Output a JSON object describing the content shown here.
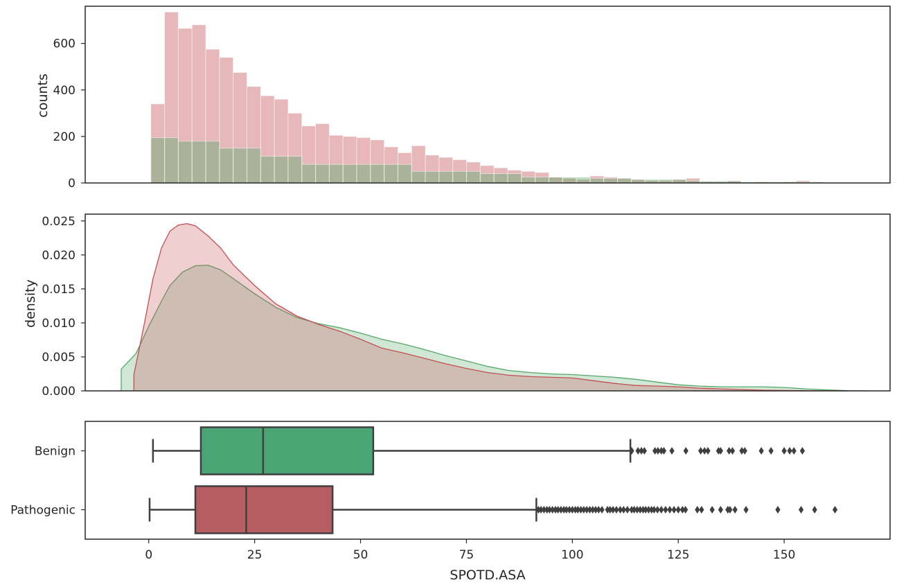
{
  "chart_data": [
    {
      "type": "histogram",
      "ylabel": "counts",
      "xlim": [
        -15,
        175
      ],
      "ylim": [
        0,
        760
      ],
      "yticks": [
        0,
        200,
        400,
        600
      ],
      "bin_width": 3.24,
      "x_start": 0.5,
      "series": [
        {
          "color": "#c44e52",
          "values": [
            340,
            735,
            665,
            680,
            575,
            540,
            475,
            415,
            375,
            360,
            300,
            245,
            255,
            205,
            200,
            195,
            185,
            155,
            130,
            160,
            120,
            110,
            100,
            90,
            75,
            65,
            55,
            50,
            45,
            25,
            20,
            15,
            30,
            25,
            20,
            15,
            10,
            10,
            15,
            20,
            5,
            5,
            10,
            0,
            5,
            3,
            5,
            10,
            0,
            0,
            0,
            0,
            0,
            0,
            0,
            0,
            3,
            3
          ]
        },
        {
          "color": "#55a868",
          "values": [
            195,
            195,
            180,
            180,
            180,
            150,
            150,
            150,
            115,
            115,
            115,
            80,
            80,
            80,
            80,
            80,
            80,
            80,
            80,
            50,
            50,
            50,
            50,
            50,
            40,
            40,
            40,
            25,
            25,
            25,
            25,
            25,
            20,
            20,
            20,
            15,
            15,
            15,
            15,
            10,
            8,
            8,
            8,
            5,
            5,
            5,
            5,
            5,
            5,
            3,
            3,
            3,
            3,
            2,
            2,
            2,
            2,
            2
          ]
        }
      ]
    },
    {
      "type": "area",
      "ylabel": "density",
      "xlim": [
        -15,
        175
      ],
      "ylim": [
        0,
        0.026
      ],
      "yticks": [
        "0.000",
        "0.005",
        "0.010",
        "0.015",
        "0.020",
        "0.025"
      ],
      "series": [
        {
          "color": "#c44e52",
          "points": [
            [
              -3.5,
              0
            ],
            [
              -3.5,
              0.0024
            ],
            [
              -1,
              0.01
            ],
            [
              1,
              0.0165
            ],
            [
              3,
              0.021
            ],
            [
              5,
              0.0235
            ],
            [
              7,
              0.0244
            ],
            [
              9,
              0.0246
            ],
            [
              11,
              0.0243
            ],
            [
              14,
              0.0228
            ],
            [
              17,
              0.021
            ],
            [
              20,
              0.0185
            ],
            [
              25,
              0.0155
            ],
            [
              30,
              0.0128
            ],
            [
              35,
              0.011
            ],
            [
              40,
              0.0098
            ],
            [
              45,
              0.0088
            ],
            [
              50,
              0.0076
            ],
            [
              55,
              0.0063
            ],
            [
              60,
              0.0056
            ],
            [
              65,
              0.0048
            ],
            [
              70,
              0.004
            ],
            [
              75,
              0.0033
            ],
            [
              80,
              0.0027
            ],
            [
              85,
              0.0023
            ],
            [
              90,
              0.0021
            ],
            [
              95,
              0.002
            ],
            [
              100,
              0.0019
            ],
            [
              105,
              0.0015
            ],
            [
              110,
              0.0011
            ],
            [
              115,
              0.0008
            ],
            [
              120,
              0.0007
            ],
            [
              125,
              0.0006
            ],
            [
              130,
              0.0004
            ],
            [
              135,
              0.0003
            ],
            [
              140,
              0.0002
            ],
            [
              145,
              0.0001
            ],
            [
              155,
              3e-05
            ],
            [
              165,
              0
            ]
          ]
        },
        {
          "color": "#55a868",
          "points": [
            [
              -6.5,
              0
            ],
            [
              -6.5,
              0.0032
            ],
            [
              -3,
              0.0055
            ],
            [
              0,
              0.0095
            ],
            [
              3,
              0.0132
            ],
            [
              5,
              0.0155
            ],
            [
              8,
              0.0175
            ],
            [
              11,
              0.0184
            ],
            [
              14,
              0.0185
            ],
            [
              17,
              0.0178
            ],
            [
              20,
              0.0165
            ],
            [
              25,
              0.0143
            ],
            [
              30,
              0.0123
            ],
            [
              35,
              0.0108
            ],
            [
              40,
              0.0099
            ],
            [
              45,
              0.0093
            ],
            [
              50,
              0.0085
            ],
            [
              55,
              0.0076
            ],
            [
              60,
              0.0069
            ],
            [
              65,
              0.0061
            ],
            [
              70,
              0.0052
            ],
            [
              75,
              0.0044
            ],
            [
              80,
              0.0036
            ],
            [
              85,
              0.003
            ],
            [
              90,
              0.0027
            ],
            [
              95,
              0.0025
            ],
            [
              100,
              0.0024
            ],
            [
              105,
              0.0022
            ],
            [
              110,
              0.002
            ],
            [
              115,
              0.0017
            ],
            [
              120,
              0.0013
            ],
            [
              125,
              0.0009
            ],
            [
              130,
              0.0007
            ],
            [
              135,
              0.0006
            ],
            [
              140,
              0.0006
            ],
            [
              145,
              0.0006
            ],
            [
              150,
              0.0005
            ],
            [
              155,
              0.0003
            ],
            [
              160,
              0.00015
            ],
            [
              165,
              4e-05
            ],
            [
              170,
              0
            ]
          ]
        }
      ]
    },
    {
      "type": "boxplot",
      "xlabel": "SPOTD.ASA",
      "xlim": [
        -15,
        175
      ],
      "xticks": [
        0,
        25,
        50,
        75,
        100,
        125,
        150
      ],
      "categories": [
        "Benign",
        "Pathogenic"
      ],
      "boxes": [
        {
          "category": "Benign",
          "color": "#4aa574",
          "whislo": 1,
          "q1": 12.3,
          "median": 27,
          "q3": 53,
          "whishi": 113.7,
          "fliers": [
            114,
            115.5,
            116.3,
            117,
            119.5,
            120.2,
            121,
            121.6,
            123.5,
            126.8,
            130.3,
            131.2,
            132,
            134.5,
            135,
            137,
            137.8,
            140,
            140.7,
            144.6,
            146.9,
            150,
            151.3,
            152.3,
            154.3
          ]
        },
        {
          "category": "Pathogenic",
          "color": "#b55d60",
          "whislo": 0.2,
          "q1": 11,
          "median": 23,
          "q3": 43.4,
          "whishi": 91.5,
          "fliers": [
            92,
            92.6,
            93.3,
            94,
            94.6,
            95.3,
            96,
            96.6,
            97.3,
            98,
            98.6,
            99.3,
            100,
            100.7,
            101.3,
            102,
            102.7,
            103.4,
            104.1,
            104.8,
            105.5,
            106.2,
            107,
            108.3,
            108.9,
            109.6,
            110.4,
            111.3,
            112.1,
            113,
            114,
            114.6,
            115.3,
            116,
            116.7,
            117.3,
            118,
            118.7,
            119.3,
            120.1,
            121,
            122,
            123,
            124,
            125,
            126,
            126.7,
            129.5,
            130.5,
            133,
            135,
            136.7,
            137.2,
            138.4,
            141,
            148.5,
            154,
            157.2,
            162
          ]
        }
      ]
    }
  ]
}
